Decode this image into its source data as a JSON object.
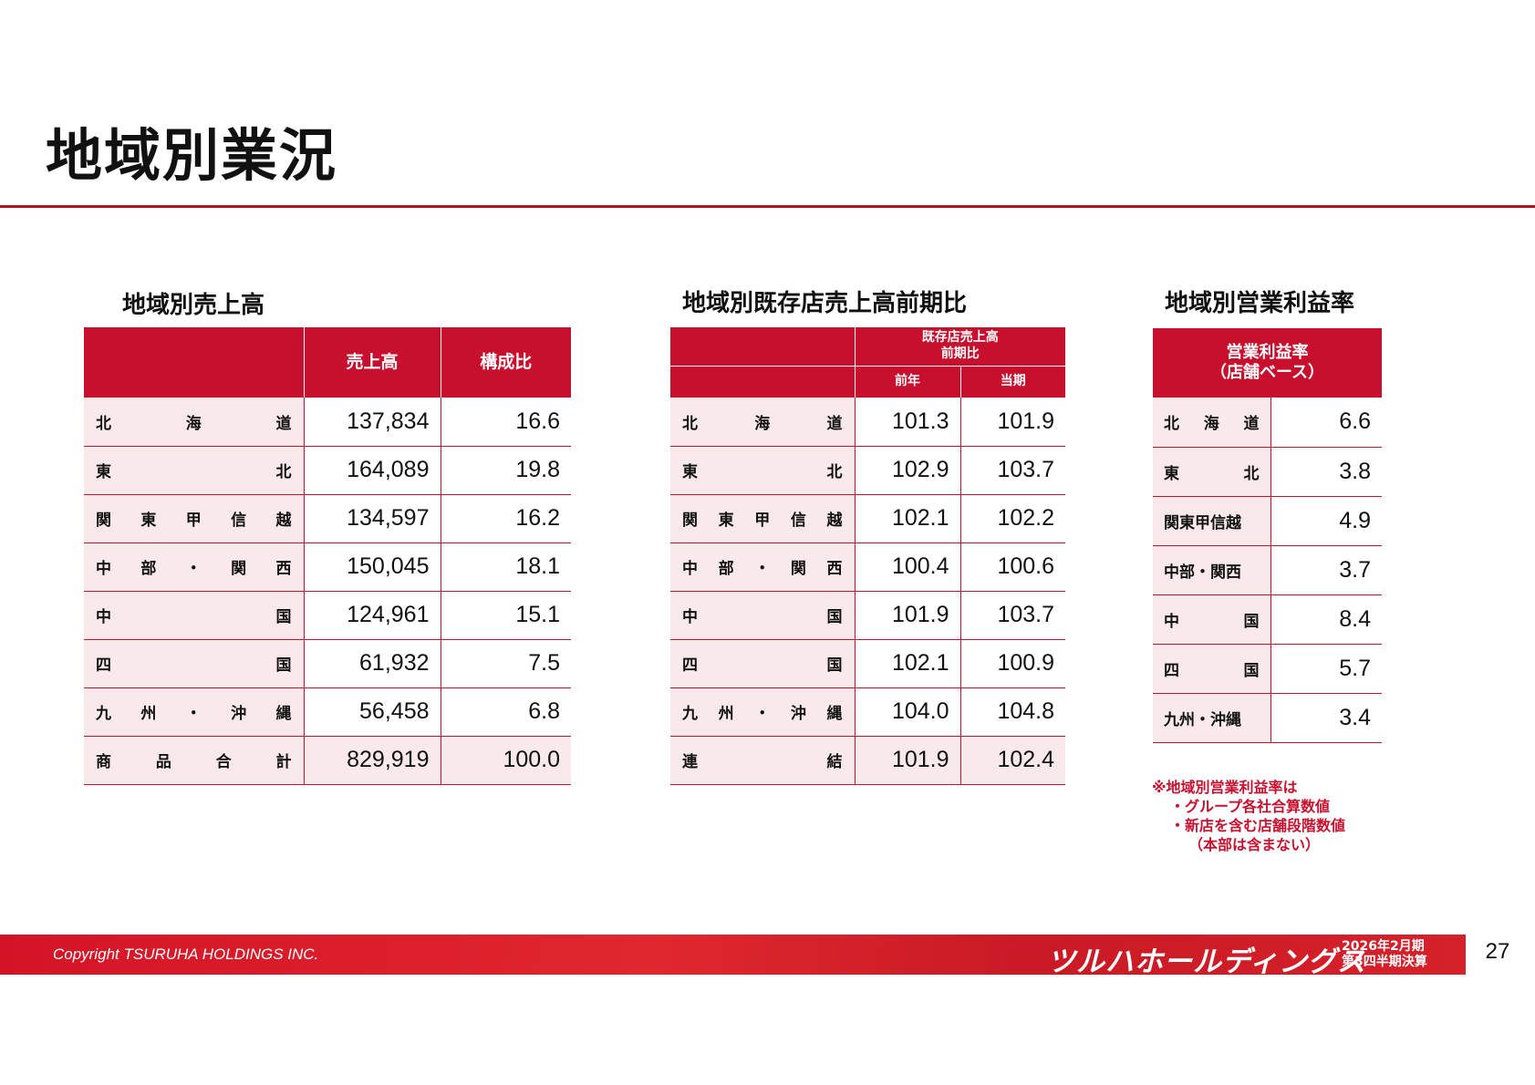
{
  "page": {
    "title": "地域別業況",
    "page_number": "27",
    "accent_color": "#c8102e"
  },
  "sales_table": {
    "heading": "地域別売上高",
    "col_sales": "売上高",
    "col_ratio": "構成比",
    "rows": [
      {
        "chars": [
          "北",
          "海",
          "道"
        ],
        "sales": "137,834",
        "ratio": "16.6"
      },
      {
        "chars": [
          "東",
          "北"
        ],
        "sales": "164,089",
        "ratio": "19.8"
      },
      {
        "chars": [
          "関",
          "東",
          "甲",
          "信",
          "越"
        ],
        "sales": "134,597",
        "ratio": "16.2"
      },
      {
        "chars": [
          "中",
          "部",
          "・",
          "関",
          "西"
        ],
        "sales": "150,045",
        "ratio": "18.1"
      },
      {
        "chars": [
          "中",
          "国"
        ],
        "sales": "124,961",
        "ratio": "15.1"
      },
      {
        "chars": [
          "四",
          "国"
        ],
        "sales": "61,932",
        "ratio": "7.5"
      },
      {
        "chars": [
          "九",
          "州",
          "・",
          "沖",
          "縄"
        ],
        "sales": "56,458",
        "ratio": "6.8"
      },
      {
        "chars": [
          "商",
          "品",
          "合",
          "計"
        ],
        "sales": "829,919",
        "ratio": "100.0"
      }
    ]
  },
  "yoy_table": {
    "heading": "地域別既存店売上高前期比",
    "group_header_line1": "既存店売上高",
    "group_header_line2": "前期比",
    "col_prev": "前年",
    "col_curr": "当期",
    "rows": [
      {
        "chars": [
          "北",
          "海",
          "道"
        ],
        "prev": "101.3",
        "curr": "101.9"
      },
      {
        "chars": [
          "東",
          "北"
        ],
        "prev": "102.9",
        "curr": "103.7"
      },
      {
        "chars": [
          "関",
          "東",
          "甲",
          "信",
          "越"
        ],
        "prev": "102.1",
        "curr": "102.2"
      },
      {
        "chars": [
          "中",
          "部",
          "・",
          "関",
          "西"
        ],
        "prev": "100.4",
        "curr": "100.6"
      },
      {
        "chars": [
          "中",
          "国"
        ],
        "prev": "101.9",
        "curr": "103.7"
      },
      {
        "chars": [
          "四",
          "国"
        ],
        "prev": "102.1",
        "curr": "100.9"
      },
      {
        "chars": [
          "九",
          "州",
          "・",
          "沖",
          "縄"
        ],
        "prev": "104.0",
        "curr": "104.8"
      },
      {
        "chars": [
          "連",
          "結"
        ],
        "prev": "101.9",
        "curr": "102.4"
      }
    ]
  },
  "margin_table": {
    "heading": "地域別営業利益率",
    "header_line1": "営業利益率",
    "header_line2": "（店舗ベース）",
    "rows": [
      {
        "chars": [
          "北",
          "海",
          "道"
        ],
        "value": "6.6"
      },
      {
        "chars": [
          "東",
          "北"
        ],
        "value": "3.8"
      },
      {
        "chars": [
          "関東甲信越"
        ],
        "value": "4.9"
      },
      {
        "chars": [
          "中部・関西"
        ],
        "value": "3.7"
      },
      {
        "chars": [
          "中",
          "国"
        ],
        "value": "8.4"
      },
      {
        "chars": [
          "四",
          "国"
        ],
        "value": "5.7"
      },
      {
        "chars": [
          "九州・沖縄"
        ],
        "value": "3.4"
      }
    ]
  },
  "note": {
    "line1": "※地域別営業利益率は",
    "line2": "・グループ各社合算数値",
    "line3": "・新店を含む店舗段階数値",
    "line4": "（本部は含まない）"
  },
  "footer": {
    "copyright": "Copyright  TSURUHA HOLDINGS INC.",
    "logo_text": "ツルハホールディングス",
    "period_line1": "2026年2月期",
    "period_line2": "第3四半期決算"
  }
}
